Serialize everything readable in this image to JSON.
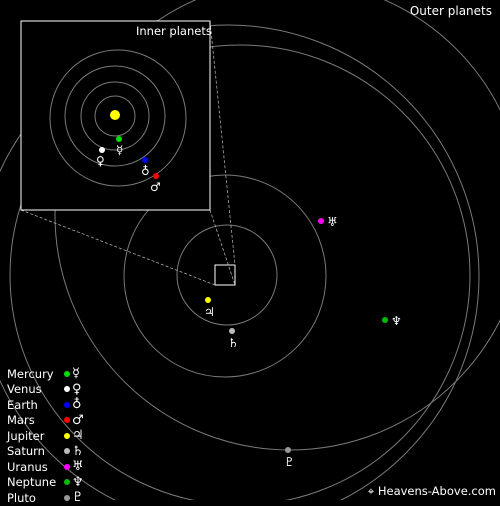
{
  "titles": {
    "outer": "Outer planets",
    "inner": "Inner planets",
    "credit": "Heavens-Above.com",
    "credit_icon": "satellite-icon"
  },
  "colors": {
    "background": "#000000",
    "orbit": "#7a7a7a",
    "frame": "#ffffff",
    "sun": "#ffff00"
  },
  "inner_planets": [
    {
      "key": "mercury",
      "name": "Mercury",
      "symbol": "☿",
      "color": "#00dd00"
    },
    {
      "key": "venus",
      "name": "Venus",
      "symbol": "♀",
      "color": "#ffffff"
    },
    {
      "key": "earth",
      "name": "Earth",
      "symbol": "♁",
      "color": "#0000ff"
    },
    {
      "key": "mars",
      "name": "Mars",
      "symbol": "♂",
      "color": "#ff0000"
    }
  ],
  "outer_planets": [
    {
      "key": "jupiter",
      "name": "Jupiter",
      "symbol": "♃",
      "color": "#ffff00"
    },
    {
      "key": "saturn",
      "name": "Saturn",
      "symbol": "♄",
      "color": "#bbbbbb"
    },
    {
      "key": "uranus",
      "name": "Uranus",
      "symbol": "♅",
      "color": "#ff00ff"
    },
    {
      "key": "neptune",
      "name": "Neptune",
      "symbol": "♆",
      "color": "#00bb00"
    },
    {
      "key": "pluto",
      "name": "Pluto",
      "symbol": "♇",
      "color": "#999999"
    }
  ]
}
